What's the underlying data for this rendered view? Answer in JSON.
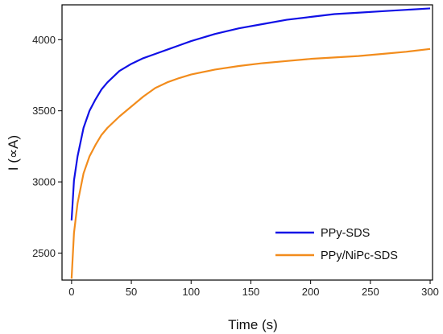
{
  "chart_data": {
    "type": "line",
    "xlabel": "Time (s)",
    "ylabel": "I (∝A)",
    "xlim": [
      -8,
      302
    ],
    "ylim": [
      2310,
      4245
    ],
    "x_ticks": [
      0,
      50,
      100,
      150,
      200,
      250,
      300
    ],
    "y_ticks": [
      2500,
      3000,
      3500,
      4000
    ],
    "grid": false,
    "legend_position": "bottom-right",
    "series": [
      {
        "name": "PPy-SDS",
        "color": "#1010e6",
        "x": [
          0,
          2,
          5,
          10,
          15,
          20,
          25,
          30,
          40,
          50,
          60,
          70,
          80,
          90,
          100,
          120,
          140,
          160,
          180,
          200,
          220,
          240,
          260,
          280,
          300
        ],
        "y": [
          2730,
          3010,
          3180,
          3380,
          3500,
          3580,
          3650,
          3700,
          3780,
          3830,
          3870,
          3900,
          3930,
          3960,
          3990,
          4040,
          4080,
          4110,
          4140,
          4160,
          4180,
          4190,
          4200,
          4210,
          4220
        ]
      },
      {
        "name": "PPy/NiPc-SDS",
        "color": "#f28c1c",
        "x": [
          0,
          2,
          5,
          10,
          15,
          20,
          25,
          30,
          40,
          50,
          60,
          70,
          80,
          90,
          100,
          120,
          140,
          160,
          180,
          200,
          220,
          240,
          260,
          280,
          300
        ],
        "y": [
          2320,
          2640,
          2850,
          3060,
          3180,
          3260,
          3330,
          3380,
          3460,
          3530,
          3600,
          3660,
          3700,
          3730,
          3755,
          3790,
          3815,
          3835,
          3850,
          3865,
          3875,
          3885,
          3900,
          3915,
          3935
        ]
      }
    ]
  }
}
